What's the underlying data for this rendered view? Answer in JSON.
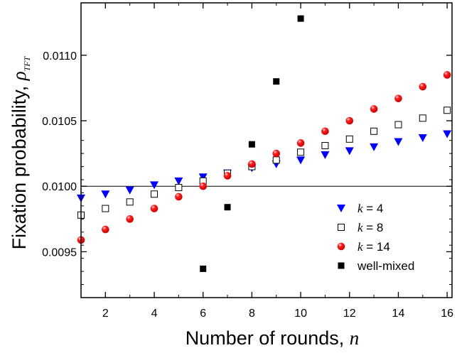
{
  "chart_data": {
    "type": "scatter",
    "xlabel": {
      "prefix": "Number of rounds, ",
      "symbol": "n"
    },
    "ylabel": {
      "prefix": "Fixation probability, ",
      "symbol": "ρ",
      "subscript": "TFT"
    },
    "xlim": [
      1,
      16.2
    ],
    "ylim": [
      0.00915,
      0.0114
    ],
    "x_ticks": [
      2,
      4,
      6,
      8,
      10,
      12,
      14,
      16
    ],
    "x_tick_labels": [
      "2",
      "4",
      "6",
      "8",
      "10",
      "12",
      "14",
      "16"
    ],
    "y_ticks": [
      0.0095,
      0.01,
      0.0105,
      0.011
    ],
    "y_tick_labels": [
      "0.0095",
      "0.0100",
      "0.0105",
      "0.0110"
    ],
    "reference_line": 0.01,
    "legend_position": "bottom-right",
    "series": [
      {
        "legend": {
          "k": "k",
          "eq": " = 4"
        },
        "marker": "triangle-down",
        "color": "#0000ff",
        "x": [
          1,
          2,
          3,
          4,
          5,
          6,
          7,
          8,
          9,
          10,
          11,
          12,
          13,
          14,
          15,
          16
        ],
        "y": [
          0.00991,
          0.00994,
          0.00997,
          0.01001,
          0.01004,
          0.01007,
          0.0101,
          0.01014,
          0.01017,
          0.0102,
          0.01024,
          0.01027,
          0.0103,
          0.01034,
          0.01037,
          0.0104
        ]
      },
      {
        "legend": {
          "k": "k",
          "eq": " = 8"
        },
        "marker": "square-open",
        "color": "#000000",
        "x": [
          1,
          2,
          3,
          4,
          5,
          6,
          7,
          8,
          9,
          10,
          11,
          12,
          13,
          14,
          15,
          16
        ],
        "y": [
          0.00978,
          0.00983,
          0.00988,
          0.00994,
          0.00999,
          0.01004,
          0.0101,
          0.01015,
          0.0102,
          0.01026,
          0.01031,
          0.01036,
          0.01042,
          0.01047,
          0.01052,
          0.01058
        ]
      },
      {
        "legend": {
          "k": "k",
          "eq": " = 14"
        },
        "marker": "circle",
        "color": "#ff0000",
        "x": [
          1,
          2,
          3,
          4,
          5,
          6,
          7,
          8,
          9,
          10,
          11,
          12,
          13,
          14,
          15,
          16
        ],
        "y": [
          0.00959,
          0.00967,
          0.00975,
          0.00983,
          0.00992,
          0.01,
          0.01008,
          0.01017,
          0.01025,
          0.01033,
          0.01042,
          0.0105,
          0.01059,
          0.01067,
          0.01076,
          0.01085
        ]
      },
      {
        "legend": {
          "k": "",
          "eq": "well-mixed"
        },
        "marker": "square-filled",
        "color": "#000000",
        "x": [
          6,
          7,
          8,
          9,
          10
        ],
        "y": [
          0.00937,
          0.00984,
          0.01032,
          0.0108,
          0.01128
        ]
      }
    ]
  }
}
